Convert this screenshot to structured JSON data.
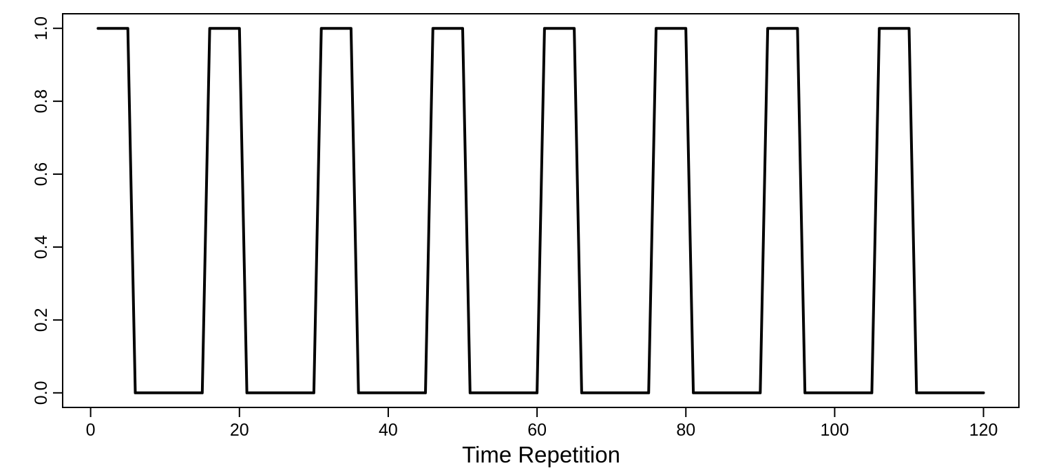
{
  "chart_data": {
    "type": "line",
    "title": "",
    "xlabel": "Time Repetition",
    "ylabel": "",
    "legend": null,
    "grid": false,
    "line_color": "#000000",
    "background_color": "#ffffff",
    "xlim": [
      1,
      120
    ],
    "ylim": [
      0,
      1
    ],
    "x_start": 1,
    "x_step": 1,
    "x_ticks": [
      0,
      20,
      40,
      60,
      80,
      100,
      120
    ],
    "x_tick_labels": [
      "0",
      "20",
      "40",
      "60",
      "80",
      "100",
      "120"
    ],
    "y_ticks": [
      0,
      0.2,
      0.4,
      0.6,
      0.8,
      1
    ],
    "y_tick_labels": [
      "0.0",
      "0.2",
      "0.4",
      "0.6",
      "0.8",
      "1.0"
    ],
    "high_value": 1,
    "low_value": 0,
    "high_intervals_x": [
      [
        1,
        5
      ],
      [
        16,
        20
      ],
      [
        31,
        35
      ],
      [
        46,
        50
      ],
      [
        61,
        65
      ],
      [
        76,
        80
      ],
      [
        91,
        95
      ],
      [
        106,
        110
      ]
    ],
    "values": [
      1,
      1,
      1,
      1,
      1,
      0,
      0,
      0,
      0,
      0,
      0,
      0,
      0,
      0,
      0,
      1,
      1,
      1,
      1,
      1,
      0,
      0,
      0,
      0,
      0,
      0,
      0,
      0,
      0,
      0,
      1,
      1,
      1,
      1,
      1,
      0,
      0,
      0,
      0,
      0,
      0,
      0,
      0,
      0,
      0,
      1,
      1,
      1,
      1,
      1,
      0,
      0,
      0,
      0,
      0,
      0,
      0,
      0,
      0,
      0,
      1,
      1,
      1,
      1,
      1,
      0,
      0,
      0,
      0,
      0,
      0,
      0,
      0,
      0,
      0,
      1,
      1,
      1,
      1,
      1,
      0,
      0,
      0,
      0,
      0,
      0,
      0,
      0,
      0,
      0,
      1,
      1,
      1,
      1,
      1,
      0,
      0,
      0,
      0,
      0,
      0,
      0,
      0,
      0,
      0,
      1,
      1,
      1,
      1,
      1,
      0,
      0,
      0,
      0,
      0,
      0,
      0,
      0,
      0,
      0
    ]
  }
}
